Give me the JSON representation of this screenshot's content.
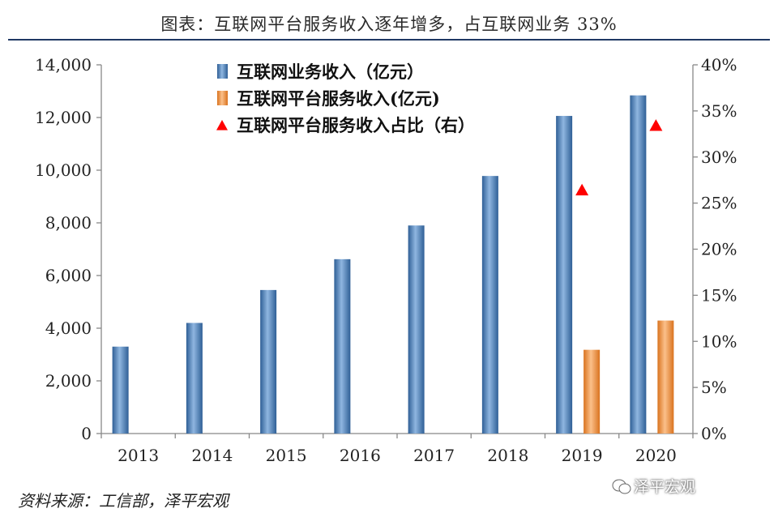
{
  "title": "图表：互联网平台服务收入逐年增多，占互联网业务 33%",
  "source": "资料来源：工信部，泽平宏观",
  "watermark": "泽平宏观",
  "chart_data": {
    "type": "bar",
    "categories": [
      "2013",
      "2014",
      "2015",
      "2016",
      "2017",
      "2018",
      "2019",
      "2020"
    ],
    "series": [
      {
        "name": "互联网业务收入（亿元）",
        "type": "bar",
        "axis": "left",
        "color": "#4f81bd",
        "values": [
          3300,
          4200,
          5450,
          6620,
          7900,
          9780,
          12060,
          12840
        ]
      },
      {
        "name": "互联网平台服务收入(亿元)",
        "type": "bar",
        "axis": "left",
        "color": "#f79646",
        "values": [
          null,
          null,
          null,
          null,
          null,
          null,
          3180,
          4290
        ]
      },
      {
        "name": "互联网平台服务收入占比（右）",
        "type": "scatter",
        "axis": "right",
        "color": "#ff0000",
        "values": [
          null,
          null,
          null,
          null,
          null,
          null,
          0.264,
          0.334
        ]
      }
    ],
    "y_left": {
      "min": 0,
      "max": 14000,
      "ticks": [
        0,
        2000,
        4000,
        6000,
        8000,
        10000,
        12000,
        14000
      ],
      "tick_labels": [
        "0",
        "2,000",
        "4,000",
        "6,000",
        "8,000",
        "10,000",
        "12,000",
        "14,000"
      ]
    },
    "y_right": {
      "min": 0,
      "max": 0.4,
      "ticks": [
        0,
        0.05,
        0.1,
        0.15,
        0.2,
        0.25,
        0.3,
        0.35,
        0.4
      ],
      "tick_labels": [
        "0%",
        "5%",
        "10%",
        "15%",
        "20%",
        "25%",
        "30%",
        "35%",
        "40%"
      ]
    },
    "legend_position": "top-left",
    "grid": false
  }
}
